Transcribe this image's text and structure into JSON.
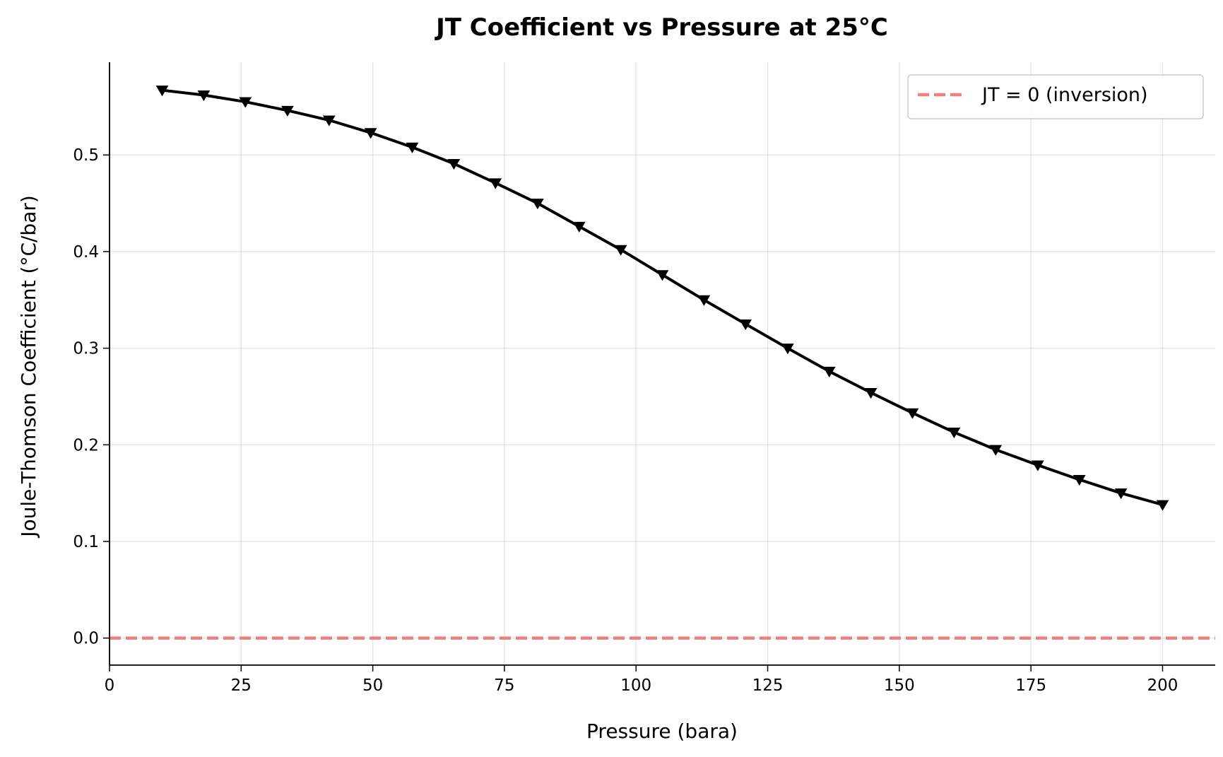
{
  "chart_data": {
    "type": "line",
    "title": "JT Coefficient vs Pressure at 25°C",
    "xlabel": "Pressure (bara)",
    "ylabel": "Joule-Thomson Coefficient (°C/bar)",
    "xlim": [
      0,
      210
    ],
    "ylim": [
      -0.028,
      0.596
    ],
    "xticks": [
      0,
      25,
      50,
      75,
      100,
      125,
      150,
      175,
      200
    ],
    "xtick_labels": [
      "0",
      "25",
      "50",
      "75",
      "100",
      "125",
      "150",
      "175",
      "200"
    ],
    "yticks": [
      0.0,
      0.1,
      0.2,
      0.3,
      0.4,
      0.5
    ],
    "ytick_labels": [
      "0.0",
      "0.1",
      "0.2",
      "0.3",
      "0.4",
      "0.5"
    ],
    "grid": true,
    "legend_position": "top-right",
    "series": [
      {
        "style": "solid line with downward-triangle markers",
        "color": "#000000",
        "x": [
          10.0,
          17.9,
          25.8,
          33.8,
          41.7,
          49.6,
          57.5,
          65.4,
          73.3,
          81.3,
          89.2,
          97.1,
          105.0,
          112.9,
          120.8,
          128.8,
          136.7,
          144.6,
          152.5,
          160.4,
          168.3,
          176.3,
          184.2,
          192.1,
          200.0
        ],
        "y": [
          0.567,
          0.562,
          0.555,
          0.546,
          0.536,
          0.523,
          0.508,
          0.491,
          0.471,
          0.45,
          0.426,
          0.402,
          0.376,
          0.35,
          0.325,
          0.3,
          0.276,
          0.254,
          0.233,
          0.213,
          0.195,
          0.179,
          0.164,
          0.15,
          0.138
        ]
      }
    ],
    "reference_lines": [
      {
        "name": "JT = 0 (inversion)",
        "y": 0.0,
        "style": "dashed",
        "color": "#f08080"
      }
    ]
  }
}
